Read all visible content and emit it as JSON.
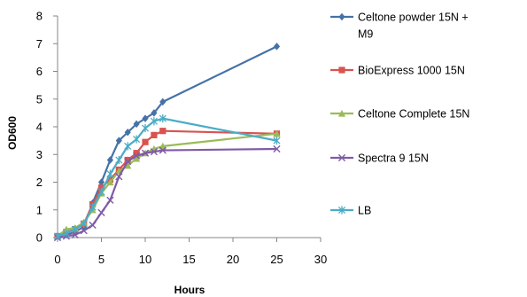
{
  "chart_data": {
    "type": "line",
    "title": "",
    "xlabel": "Hours",
    "ylabel": "OD600",
    "xlim": [
      0,
      30
    ],
    "ylim": [
      0,
      8
    ],
    "x_ticks": [
      0,
      5,
      10,
      15,
      20,
      25,
      30
    ],
    "y_ticks": [
      0,
      1,
      2,
      3,
      4,
      5,
      6,
      7,
      8
    ],
    "grid": false,
    "legend_position": "right",
    "series": [
      {
        "name": "Celtone powder 15N + M9",
        "legend_lines": [
          "Celtone powder 15N +",
          "M9"
        ],
        "color": "#4572A7",
        "marker": "diamond",
        "points": [
          [
            0,
            0.05
          ],
          [
            1,
            0.1
          ],
          [
            2,
            0.2
          ],
          [
            3,
            0.4
          ],
          [
            4,
            1.25
          ],
          [
            5,
            2.0
          ],
          [
            6,
            2.8
          ],
          [
            7,
            3.5
          ],
          [
            8,
            3.8
          ],
          [
            9,
            4.1
          ],
          [
            10,
            4.3
          ],
          [
            11,
            4.5
          ],
          [
            12,
            4.9
          ],
          [
            25,
            6.9
          ]
        ]
      },
      {
        "name": "BioExpress 1000 15N",
        "legend_lines": [
          "BioExpress 1000 15N"
        ],
        "color": "#D9534F",
        "marker": "square",
        "points": [
          [
            0,
            0.05
          ],
          [
            1,
            0.2
          ],
          [
            2,
            0.3
          ],
          [
            3,
            0.5
          ],
          [
            4,
            1.2
          ],
          [
            5,
            1.8
          ],
          [
            6,
            2.1
          ],
          [
            7,
            2.45
          ],
          [
            8,
            2.8
          ],
          [
            9,
            3.05
          ],
          [
            10,
            3.45
          ],
          [
            11,
            3.7
          ],
          [
            12,
            3.85
          ],
          [
            25,
            3.75
          ]
        ]
      },
      {
        "name": "Celtone Complete 15N",
        "legend_lines": [
          "Celtone Complete 15N"
        ],
        "color": "#9BBB59",
        "marker": "triangle",
        "points": [
          [
            0,
            0.05
          ],
          [
            1,
            0.3
          ],
          [
            2,
            0.35
          ],
          [
            3,
            0.55
          ],
          [
            4,
            1.0
          ],
          [
            5,
            1.6
          ],
          [
            6,
            2.0
          ],
          [
            7,
            2.4
          ],
          [
            8,
            2.6
          ],
          [
            9,
            2.85
          ],
          [
            10,
            3.05
          ],
          [
            11,
            3.2
          ],
          [
            12,
            3.3
          ],
          [
            25,
            3.75
          ]
        ]
      },
      {
        "name": "Spectra 9 15N",
        "legend_lines": [
          "Spectra 9 15N"
        ],
        "color": "#7F5BA6",
        "marker": "x",
        "points": [
          [
            0,
            0.0
          ],
          [
            1,
            0.05
          ],
          [
            2,
            0.1
          ],
          [
            3,
            0.25
          ],
          [
            4,
            0.45
          ],
          [
            5,
            0.9
          ],
          [
            6,
            1.35
          ],
          [
            7,
            2.2
          ],
          [
            8,
            2.75
          ],
          [
            9,
            2.95
          ],
          [
            10,
            3.05
          ],
          [
            11,
            3.1
          ],
          [
            12,
            3.15
          ],
          [
            25,
            3.2
          ]
        ]
      },
      {
        "name": "LB",
        "legend_lines": [
          "LB"
        ],
        "color": "#4BACC6",
        "marker": "star",
        "points": [
          [
            0,
            0.05
          ],
          [
            1,
            0.15
          ],
          [
            2,
            0.3
          ],
          [
            3,
            0.5
          ],
          [
            4,
            1.1
          ],
          [
            5,
            1.65
          ],
          [
            6,
            2.3
          ],
          [
            7,
            2.8
          ],
          [
            8,
            3.3
          ],
          [
            9,
            3.55
          ],
          [
            10,
            3.95
          ],
          [
            11,
            4.2
          ],
          [
            12,
            4.3
          ],
          [
            25,
            3.5
          ]
        ]
      }
    ]
  }
}
